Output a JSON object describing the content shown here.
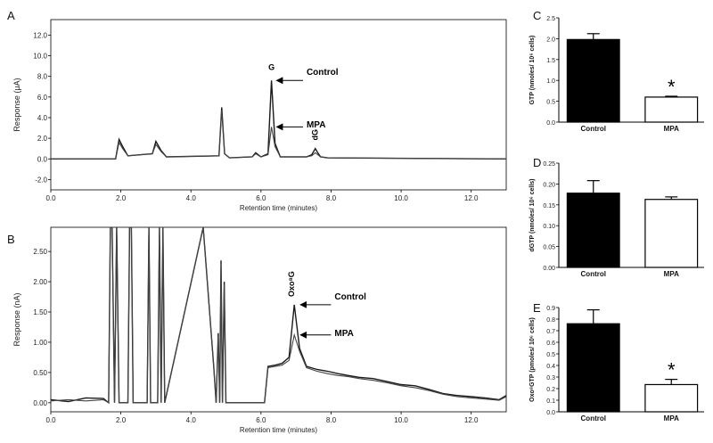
{
  "chart_data": [
    {
      "panel": "A",
      "type": "line",
      "xlabel": "Retention time (minutes)",
      "ylabel": "Response (μA)",
      "xlim": [
        0,
        13
      ],
      "ylim": [
        -3,
        13.5
      ],
      "xticks": [
        "0.0",
        "2.0",
        "4.0",
        "6.0",
        "8.0",
        "10.0",
        "12.0"
      ],
      "xtick_values": [
        0,
        2,
        4,
        6,
        8,
        10,
        12
      ],
      "yticks": [
        "-2.0",
        "0.0",
        "2.0",
        "4.0",
        "6.0",
        "8.0",
        "10.0",
        "12.0"
      ],
      "ytick_values": [
        -2,
        0,
        2,
        4,
        6,
        8,
        10,
        12
      ],
      "series": [
        {
          "name": "Control",
          "x": [
            0,
            1.85,
            1.95,
            2.05,
            2.2,
            2.9,
            3.0,
            3.15,
            3.3,
            4.8,
            4.88,
            4.96,
            5.1,
            5.75,
            5.85,
            6.0,
            6.2,
            6.3,
            6.4,
            6.55,
            7.3,
            7.45,
            7.55,
            7.62,
            7.7,
            7.9,
            13
          ],
          "y": [
            0,
            0,
            1.9,
            1.2,
            0.3,
            0.5,
            1.7,
            0.8,
            0.2,
            0.3,
            5.0,
            0.5,
            0.1,
            0.2,
            0.6,
            0.2,
            0.5,
            7.6,
            1.5,
            0.2,
            0.2,
            0.4,
            1.0,
            0.6,
            0.2,
            0.1,
            0
          ]
        },
        {
          "name": "MPA",
          "x": [
            0,
            1.85,
            1.95,
            2.05,
            2.2,
            2.9,
            3.0,
            3.15,
            3.3,
            4.8,
            4.88,
            4.96,
            5.1,
            5.75,
            5.85,
            6.0,
            6.2,
            6.3,
            6.4,
            6.55,
            7.3,
            7.45,
            7.55,
            7.62,
            7.7,
            7.9,
            13
          ],
          "y": [
            0,
            0,
            1.6,
            1.0,
            0.3,
            0.5,
            1.4,
            0.7,
            0.2,
            0.3,
            4.7,
            0.5,
            0.1,
            0.2,
            0.5,
            0.2,
            0.4,
            3.1,
            1.2,
            0.2,
            0.2,
            0.3,
            0.6,
            0.4,
            0.2,
            0.1,
            0
          ]
        }
      ],
      "annotations": [
        {
          "text": "G",
          "x": 6.3,
          "y": 8.6,
          "rotate": 0
        },
        {
          "text": "dG",
          "x": 7.62,
          "y": 1.8,
          "rotate": -90
        },
        {
          "text": "Control",
          "arrow_to": [
            6.32,
            7.6
          ],
          "text_at": [
            7.3,
            8.4
          ]
        },
        {
          "text": "MPA",
          "arrow_to": [
            6.32,
            3.1
          ],
          "text_at": [
            7.3,
            3.3
          ]
        }
      ],
      "panel_label": "A"
    },
    {
      "panel": "B",
      "type": "line",
      "xlabel": "Retention time (minutes)",
      "ylabel": "Response (nA)",
      "xlim": [
        0,
        13
      ],
      "ylim": [
        -0.15,
        2.9
      ],
      "xticks": [
        "0.0",
        "2.0",
        "4.0",
        "6.0",
        "8.0",
        "10.0",
        "12.0"
      ],
      "xtick_values": [
        0,
        2,
        4,
        6,
        8,
        10,
        12
      ],
      "yticks": [
        "0.00",
        "0.50",
        "1.00",
        "1.50",
        "2.00",
        "2.50"
      ],
      "ytick_values": [
        0,
        0.5,
        1,
        1.5,
        2,
        2.5
      ],
      "series": [
        {
          "name": "Control",
          "x": [
            0,
            0.5,
            1,
            1.5,
            1.65,
            1.7,
            1.75,
            1.82,
            1.88,
            1.95,
            2.2,
            2.25,
            2.3,
            2.35,
            2.75,
            2.8,
            2.85,
            3.05,
            3.1,
            3.15,
            3.2,
            3.25,
            4.35,
            4.65,
            4.72,
            4.78,
            4.82,
            4.86,
            4.9,
            4.95,
            5.0,
            6.1,
            6.2,
            6.4,
            6.6,
            6.8,
            6.95,
            7.1,
            7.3,
            7.6,
            7.9,
            8.2,
            8.5,
            8.8,
            9.2,
            9.6,
            10.0,
            10.4,
            10.8,
            11.2,
            11.6,
            12.0,
            12.4,
            12.8,
            13
          ],
          "y": [
            0.05,
            0.02,
            0.08,
            0.07,
            0.0,
            2.9,
            2.9,
            0.0,
            2.9,
            0.0,
            0.0,
            2.9,
            2.9,
            0.0,
            0.0,
            2.9,
            0.0,
            0.0,
            2.9,
            0.0,
            2.9,
            0.0,
            2.9,
            0.6,
            0.0,
            1.15,
            0.0,
            2.35,
            0.0,
            2.0,
            0.0,
            0.0,
            0.6,
            0.62,
            0.65,
            0.75,
            1.62,
            0.9,
            0.6,
            0.55,
            0.52,
            0.48,
            0.45,
            0.42,
            0.4,
            0.35,
            0.3,
            0.28,
            0.22,
            0.15,
            0.12,
            0.1,
            0.08,
            0.05,
            0.12
          ]
        },
        {
          "name": "MPA",
          "x": [
            0,
            0.5,
            1,
            1.5,
            1.65,
            1.7,
            1.75,
            1.82,
            1.88,
            1.95,
            2.2,
            2.25,
            2.3,
            2.35,
            2.75,
            2.8,
            2.85,
            3.05,
            3.1,
            3.15,
            3.2,
            3.25,
            4.35,
            4.65,
            4.72,
            4.78,
            4.82,
            4.86,
            4.9,
            4.95,
            5.0,
            6.1,
            6.2,
            6.4,
            6.6,
            6.8,
            6.95,
            7.1,
            7.3,
            7.6,
            7.9,
            8.2,
            8.5,
            8.8,
            9.2,
            9.6,
            10.0,
            10.4,
            10.8,
            11.2,
            11.6,
            12.0,
            12.4,
            12.8,
            13
          ],
          "y": [
            0.03,
            0.05,
            0.03,
            0.05,
            0.0,
            2.9,
            2.9,
            0.0,
            2.9,
            0.0,
            0.0,
            2.9,
            2.9,
            0.0,
            0.0,
            2.9,
            0.0,
            0.0,
            2.9,
            0.0,
            2.9,
            0.0,
            2.9,
            0.6,
            0.0,
            1.1,
            0.0,
            2.3,
            0.0,
            1.95,
            0.0,
            0.0,
            0.58,
            0.6,
            0.62,
            0.7,
            1.12,
            0.85,
            0.58,
            0.52,
            0.48,
            0.45,
            0.43,
            0.4,
            0.37,
            0.33,
            0.28,
            0.25,
            0.2,
            0.14,
            0.1,
            0.08,
            0.06,
            0.04,
            0.1
          ]
        }
      ],
      "annotations": [
        {
          "text": "Oxo⁸G",
          "x": 6.95,
          "y": 1.75,
          "rotate": -90
        },
        {
          "text": "Control",
          "arrow_to": [
            7.0,
            1.62
          ],
          "text_at": [
            8.1,
            1.75
          ]
        },
        {
          "text": "MPA",
          "arrow_to": [
            7.0,
            1.12
          ],
          "text_at": [
            8.1,
            1.15
          ]
        }
      ],
      "panel_label": "B"
    },
    {
      "panel": "C",
      "type": "bar",
      "categories": [
        "Control",
        "MPA"
      ],
      "values": [
        1.98,
        0.6
      ],
      "errors": [
        0.14,
        0.02
      ],
      "fills": [
        "#000000",
        "#ffffff"
      ],
      "ylabel": "GTP (nmoles/ 10⁶ cells)",
      "ylim": [
        0,
        2.5
      ],
      "yticks": [
        "0.0",
        "0.5",
        "1.0",
        "1.5",
        "2.0",
        "2.5"
      ],
      "ytick_values": [
        0,
        0.5,
        1,
        1.5,
        2,
        2.5
      ],
      "significance": [
        {
          "category": "MPA",
          "mark": "*"
        }
      ],
      "panel_label": "C"
    },
    {
      "panel": "D",
      "type": "bar",
      "categories": [
        "Control",
        "MPA"
      ],
      "values": [
        0.178,
        0.163
      ],
      "errors": [
        0.03,
        0.006
      ],
      "fills": [
        "#000000",
        "#ffffff"
      ],
      "ylabel": "dGTP (nmoles/ 10⁶ cells)",
      "ylim": [
        0,
        0.25
      ],
      "yticks": [
        "0.00",
        "0.05",
        "0.10",
        "0.15",
        "0.20",
        "0.25"
      ],
      "ytick_values": [
        0,
        0.05,
        0.1,
        0.15,
        0.2,
        0.25
      ],
      "significance": [],
      "panel_label": "D"
    },
    {
      "panel": "E",
      "type": "bar",
      "categories": [
        "Control",
        "MPA"
      ],
      "values": [
        0.76,
        0.235
      ],
      "errors": [
        0.12,
        0.045
      ],
      "fills": [
        "#000000",
        "#ffffff"
      ],
      "ylabel": "Oxo⁸GTP (pmoles/ 10⁶ cells)",
      "ylim": [
        0,
        0.9
      ],
      "yticks": [
        "0.0",
        "0.1",
        "0.2",
        "0.3",
        "0.4",
        "0.5",
        "0.6",
        "0.7",
        "0.8",
        "0.9"
      ],
      "ytick_values": [
        0,
        0.1,
        0.2,
        0.3,
        0.4,
        0.5,
        0.6,
        0.7,
        0.8,
        0.9
      ],
      "significance": [
        {
          "category": "MPA",
          "mark": "*"
        }
      ],
      "panel_label": "E"
    }
  ]
}
